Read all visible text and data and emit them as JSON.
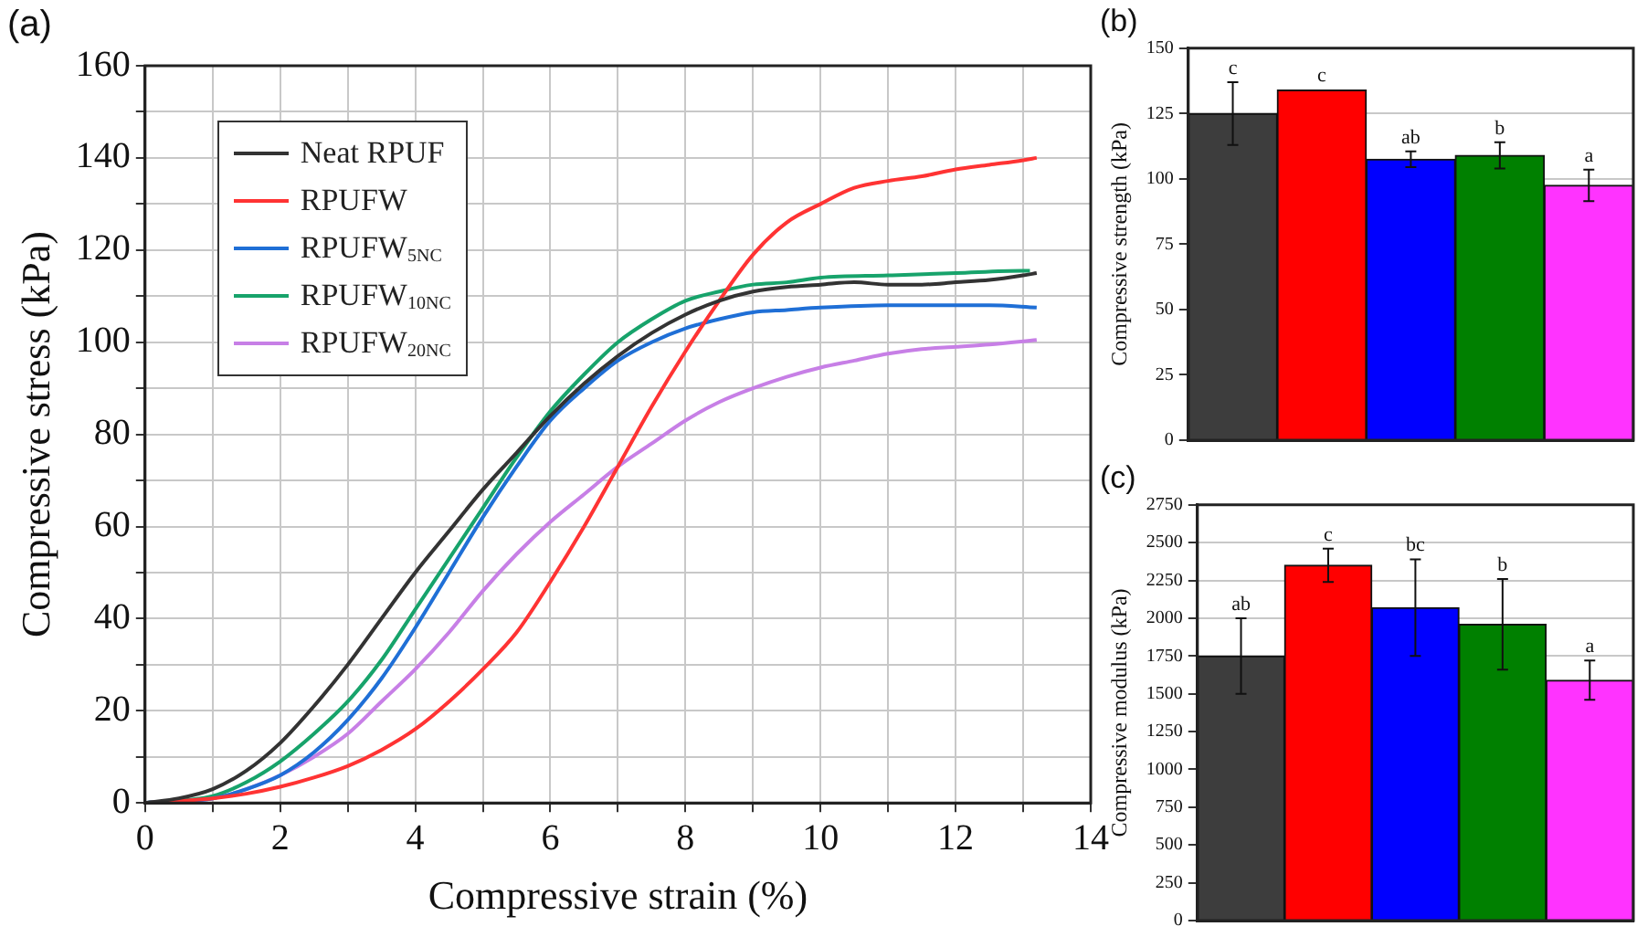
{
  "chart_data": [
    {
      "type": "line",
      "title": "(a)",
      "xlabel": "Compressive strain (%)",
      "ylabel": "Compressive stress (kPa)",
      "xlim": [
        0,
        14
      ],
      "ylim": [
        0,
        160
      ],
      "xticks": [
        0,
        {
          "value": 1,
          "label": null
        },
        2,
        {
          "value": 3,
          "label": null
        },
        4,
        {
          "value": 5,
          "label": null
        },
        6,
        {
          "value": 7,
          "label": null
        },
        8,
        {
          "value": 9,
          "label": null
        },
        10,
        {
          "value": 11,
          "label": null
        },
        12,
        {
          "value": 13,
          "label": null
        },
        14
      ],
      "yticks": [
        0,
        {
          "value": 10,
          "label": null
        },
        20,
        {
          "value": 30,
          "label": null
        },
        40,
        {
          "value": 50,
          "label": null
        },
        60,
        {
          "value": 70,
          "label": null
        },
        80,
        {
          "value": 90,
          "label": null
        },
        100,
        {
          "value": 110,
          "label": null
        },
        120,
        {
          "value": 130,
          "label": null
        },
        140,
        {
          "value": 150,
          "label": null
        },
        160
      ],
      "grid": true,
      "legend": "top left",
      "marker": "none",
      "line_style": "solid",
      "series": [
        {
          "name": "Neat RPUF",
          "color": "#333333",
          "x": [
            0,
            0.5,
            1,
            1.5,
            2,
            2.5,
            3,
            3.5,
            4,
            4.5,
            5,
            5.5,
            6,
            6.5,
            7,
            7.5,
            8,
            8.5,
            9,
            9.5,
            10,
            10.5,
            11,
            11.5,
            12,
            12.5,
            13,
            13.2
          ],
          "values": [
            0,
            1,
            3,
            7,
            13,
            21,
            30,
            40,
            50,
            59,
            68,
            76,
            84,
            91,
            97,
            102,
            106,
            109,
            111,
            112,
            112.5,
            113,
            112.5,
            112.5,
            113,
            113.5,
            114.5,
            115
          ]
        },
        {
          "name": "RPUFW",
          "color": "#ff3333",
          "x": [
            0,
            1,
            1.5,
            2,
            2.5,
            3,
            3.5,
            4,
            4.5,
            5,
            5.5,
            6,
            6.5,
            7,
            7.5,
            8,
            8.5,
            9,
            9.5,
            10,
            10.5,
            11,
            11.5,
            12,
            12.5,
            13,
            13.2
          ],
          "values": [
            0,
            1,
            2,
            3.5,
            5.5,
            8,
            11.5,
            16,
            22,
            29,
            37,
            48,
            60,
            73,
            86,
            98,
            109,
            119,
            126,
            130,
            133.5,
            135,
            136,
            137.5,
            138.5,
            139.5,
            140
          ]
        },
        {
          "name": "RPUFW$_{5NC}$",
          "color": "#1f6fd6",
          "x": [
            0,
            1,
            1.5,
            2,
            2.5,
            3,
            3.5,
            4,
            4.5,
            5,
            5.5,
            6,
            6.5,
            7,
            7.5,
            8,
            8.5,
            9,
            9.5,
            10,
            11,
            12,
            12.5,
            13.2
          ],
          "values": [
            0,
            1,
            3,
            6,
            11,
            18,
            27,
            38,
            50,
            62,
            73,
            83,
            90,
            96,
            100,
            103,
            105,
            106.5,
            107,
            107.5,
            108,
            108,
            108,
            107.5
          ]
        },
        {
          "name": "RPUFW$_{10NC}$",
          "color": "#17a36b",
          "x": [
            0,
            1,
            1.5,
            2,
            2.5,
            3,
            3.5,
            4,
            4.5,
            5,
            5.5,
            6,
            6.5,
            7,
            7.5,
            8,
            8.5,
            9,
            9.5,
            10,
            11,
            12,
            13,
            13.1
          ],
          "values": [
            0,
            1.5,
            4.5,
            9,
            15,
            22,
            31,
            42,
            53,
            64,
            75,
            85,
            93,
            100,
            105,
            109,
            111,
            112.5,
            113,
            114,
            114.5,
            115,
            115.5,
            115.5
          ]
        },
        {
          "name": "RPUFW$_{20NC}$",
          "color": "#c77fe6",
          "x": [
            0,
            1,
            1.5,
            2,
            2.5,
            3,
            3.5,
            4,
            4.5,
            5,
            5.5,
            6,
            6.5,
            7,
            7.5,
            8,
            8.5,
            9,
            9.5,
            10,
            10.5,
            11,
            11.5,
            12,
            12.5,
            13.2
          ],
          "values": [
            0,
            1,
            3,
            6,
            10,
            15,
            22,
            29,
            37,
            46,
            54,
            61,
            67,
            73,
            78,
            83,
            87,
            90,
            92.5,
            94.5,
            96,
            97.5,
            98.5,
            99,
            99.5,
            100.5
          ]
        }
      ]
    },
    {
      "type": "bar",
      "title": "(b)",
      "ylabel": "Compressive strength (kPa)",
      "categories": [
        null,
        null,
        null,
        null,
        null
      ],
      "ylim": [
        0,
        150
      ],
      "yticks": [
        0,
        25,
        50,
        75,
        100,
        125,
        150
      ],
      "grid": "y",
      "tick_labels": "y",
      "values": [
        125,
        134,
        107.5,
        109,
        97.5
      ],
      "errors": [
        12,
        null,
        3,
        5,
        6
      ],
      "value_labels": [
        "c",
        "c",
        "ab",
        "b",
        "a"
      ],
      "colors": [
        "#3d3d3d",
        "#ff0000",
        "#0000ff",
        "#008000",
        "#ff33ff"
      ]
    },
    {
      "type": "bar",
      "title": "(c)",
      "ylabel": "Compressive modulus (kPa)",
      "categories": [
        null,
        null,
        null,
        null,
        null
      ],
      "ylim": [
        0,
        2750
      ],
      "yticks": [
        0,
        250,
        500,
        750,
        1000,
        1250,
        1500,
        1750,
        2000,
        2250,
        2500,
        2750
      ],
      "grid": "y",
      "tick_labels": "y",
      "values": [
        1750,
        2350,
        2070,
        1960,
        1590
      ],
      "errors": [
        250,
        110,
        320,
        300,
        130
      ],
      "value_labels": [
        "ab",
        "c",
        "bc",
        "b",
        "a"
      ],
      "colors": [
        "#3d3d3d",
        "#ff0000",
        "#0000ff",
        "#008000",
        "#ff33ff"
      ]
    }
  ]
}
